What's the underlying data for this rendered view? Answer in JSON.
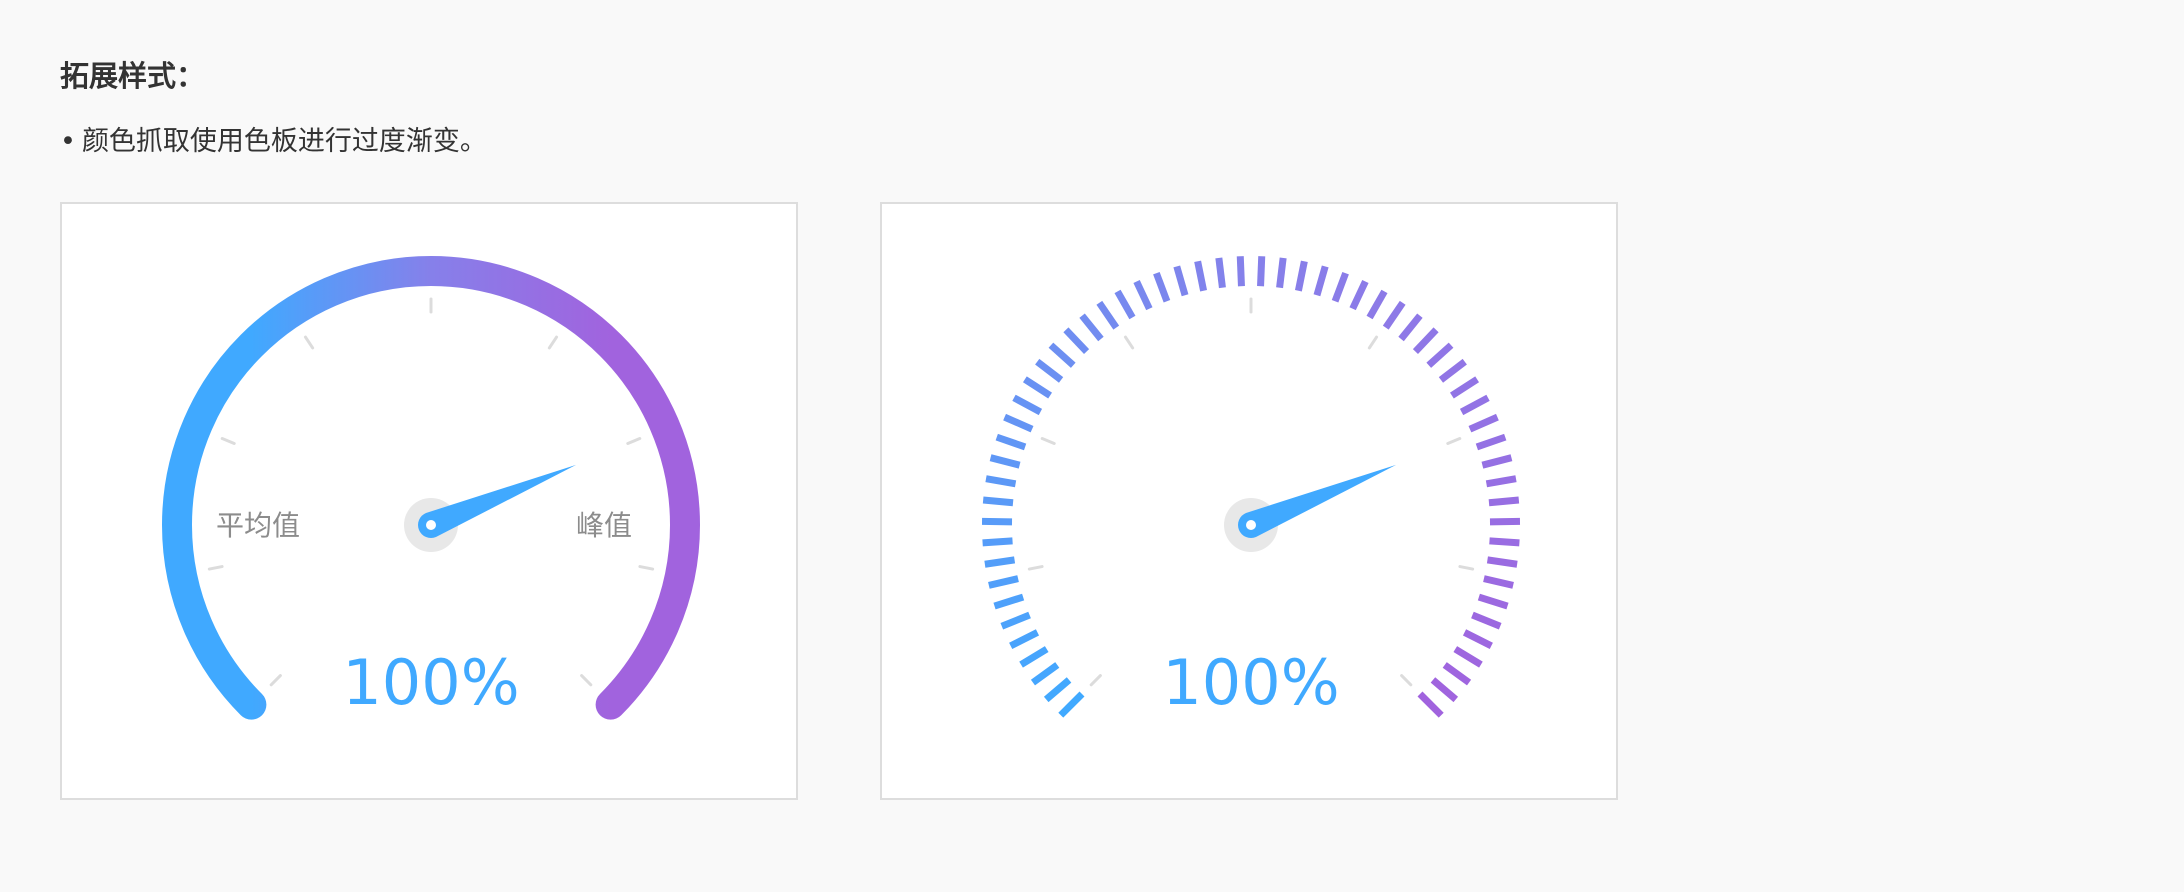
{
  "section": {
    "heading": "拓展样式：",
    "bullet_symbol": "•",
    "bullet_text": "颜色抓取使用色板进行过度渐变。"
  },
  "colors": {
    "gradient_start": "#40a9ff",
    "gradient_mid": "#8680ea",
    "gradient_end": "#a163de",
    "pointer": "#40a9ff",
    "hub": "#e8e8e8",
    "tick": "#dcdcdc",
    "label": "#8c8c8c",
    "value": "#40a9ff"
  },
  "chart_data": [
    {
      "type": "gauge",
      "style": "solid-arc",
      "value_text": "100%",
      "min_label": "平均值",
      "max_label": "峰值",
      "pointer_fraction": 0.75,
      "arc_span_deg": 270,
      "major_ticks": 9
    },
    {
      "type": "gauge",
      "style": "segmented-arc",
      "value_text": "100%",
      "pointer_fraction": 0.75,
      "arc_span_deg": 270,
      "major_ticks": 9,
      "segment_count": 60
    }
  ]
}
